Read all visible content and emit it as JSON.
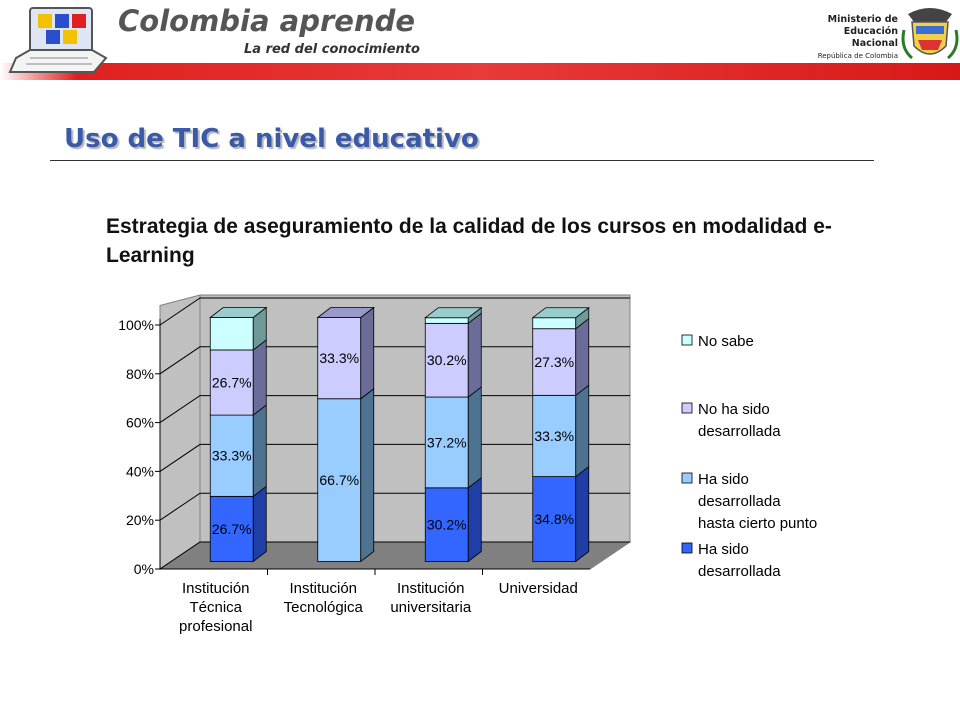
{
  "header": {
    "brand_title": "Colombia aprende",
    "brand_subtitle": "La red del conocimiento",
    "ministry_lines": [
      "Ministerio de",
      "Educación",
      "Nacional"
    ],
    "ministry_small": "República de Colombia"
  },
  "page": {
    "title": "Uso de TIC a nivel educativo",
    "subtitle": "Estrategia de aseguramiento de la calidad de los cursos en modalidad e-Learning"
  },
  "colors": {
    "accent_red": "#e02020",
    "title_blue": "#3a5aa8",
    "series": [
      "#3366ff",
      "#99ccff",
      "#ccccff",
      "#ccffff"
    ],
    "series_side": [
      "#1f3fa6",
      "#4d7390",
      "#6c6c99",
      "#6f9999"
    ],
    "series_top": [
      "#2a4ecc",
      "#7aa3cc",
      "#9999cc",
      "#99cccc"
    ]
  },
  "chart_data": {
    "type": "bar",
    "stacked": true,
    "percent": true,
    "categories": [
      [
        "Institución",
        "Técnica",
        "profesional"
      ],
      [
        "Institución",
        "Tecnológica"
      ],
      [
        "Institución",
        "universitaria"
      ],
      [
        "Universidad"
      ]
    ],
    "series": [
      {
        "name": "Ha sido desarrollada",
        "legend_lines": [
          "Ha sido",
          "desarrollada"
        ],
        "values": [
          26.7,
          0,
          30.2,
          34.8
        ],
        "labels": [
          "26.7%",
          "",
          "30.2%",
          "34.8%"
        ]
      },
      {
        "name": "Ha sido desarrollada hasta cierto punto",
        "legend_lines": [
          "Ha sido",
          "desarrollada",
          "hasta cierto punto"
        ],
        "values": [
          33.3,
          66.7,
          37.2,
          33.3
        ],
        "labels": [
          "33.3%",
          "66.7%",
          "37.2%",
          "33.3%"
        ]
      },
      {
        "name": "No ha sido desarrollada",
        "legend_lines": [
          "No ha sido",
          "desarrollada"
        ],
        "values": [
          26.7,
          33.3,
          30.2,
          27.3
        ],
        "labels": [
          "26.7%",
          "33.3%",
          "30.2%",
          "27.3%"
        ]
      },
      {
        "name": "No sabe",
        "legend_lines": [
          "No sabe"
        ],
        "values": [
          13.3,
          0,
          2.3,
          4.5
        ],
        "labels": [
          "",
          "",
          "",
          ""
        ]
      }
    ],
    "ylim": [
      0,
      100
    ],
    "yticks": [
      "0%",
      "20%",
      "40%",
      "60%",
      "80%",
      "100%"
    ],
    "grid": true,
    "legend": "right",
    "xlabel": "",
    "ylabel": ""
  }
}
